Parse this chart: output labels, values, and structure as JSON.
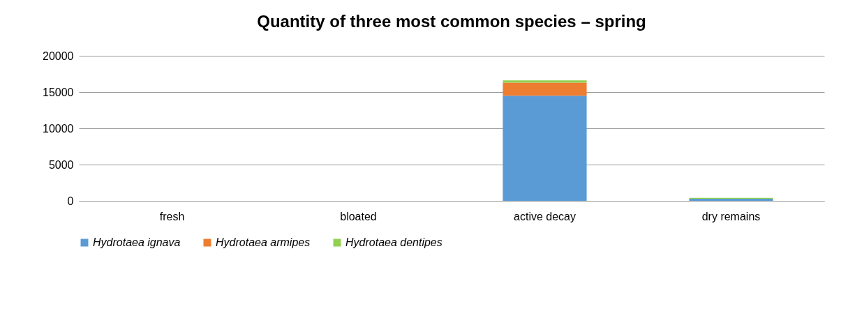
{
  "chart_data": {
    "type": "bar",
    "title": "Quantity of three most common species – spring",
    "categories": [
      "fresh",
      "bloated",
      "active decay",
      "dry remains"
    ],
    "stacked": true,
    "series": [
      {
        "name": "Hydrotaea ignava",
        "color": "#5b9bd5",
        "values": [
          0,
          0,
          14500,
          300
        ]
      },
      {
        "name": "Hydrotaea armipes",
        "color": "#ed7d31",
        "values": [
          0,
          0,
          1800,
          0
        ]
      },
      {
        "name": "Hydrotaea dentipes",
        "color": "#92d050",
        "values": [
          0,
          0,
          300,
          100
        ]
      }
    ],
    "ylim": [
      0,
      20000
    ],
    "yticks": [
      0,
      5000,
      10000,
      15000,
      20000
    ],
    "grid": "y",
    "legend": "bottom"
  }
}
